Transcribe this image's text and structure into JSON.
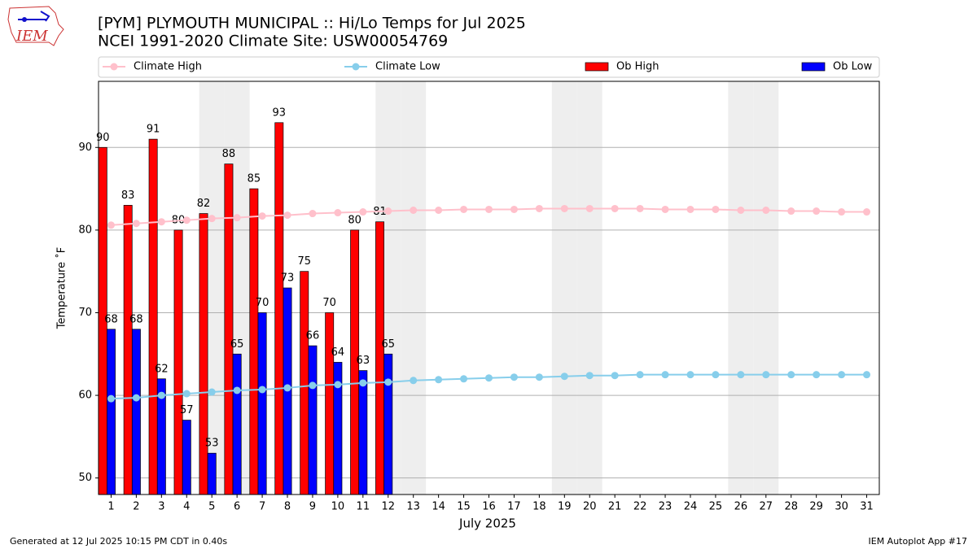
{
  "logo_text": "IEM",
  "footer": {
    "left": "Generated at 12 Jul 2025 10:15 PM CDT in 0.40s",
    "right": "IEM Autoplot App #17"
  },
  "chart_data": {
    "type": "bar",
    "title": [
      "[PYM] PLYMOUTH MUNICIPAL :: Hi/Lo Temps for Jul 2025",
      "NCEI 1991-2020 Climate Site: USW00054769"
    ],
    "x_label": "July 2025",
    "y_label": "Temperature ˚F",
    "x": [
      1,
      2,
      3,
      4,
      5,
      6,
      7,
      8,
      9,
      10,
      11,
      12,
      13,
      14,
      15,
      16,
      17,
      18,
      19,
      20,
      21,
      22,
      23,
      24,
      25,
      26,
      27,
      28,
      29,
      30,
      31
    ],
    "xlim": [
      0.5,
      31.5
    ],
    "xticks": [
      1,
      2,
      3,
      4,
      5,
      6,
      7,
      8,
      9,
      10,
      11,
      12,
      13,
      14,
      15,
      16,
      17,
      18,
      19,
      20,
      21,
      22,
      23,
      24,
      25,
      26,
      27,
      28,
      29,
      30,
      31
    ],
    "ylim": [
      48,
      98
    ],
    "yticks": [
      50,
      60,
      70,
      80,
      90
    ],
    "grid": true,
    "shaded_days": [
      5,
      6,
      12,
      13,
      19,
      20,
      26,
      27
    ],
    "series": [
      {
        "name": "Climate High",
        "type": "line",
        "color": "#ffc0cb",
        "values": [
          80.6,
          80.8,
          81.0,
          81.2,
          81.4,
          81.5,
          81.7,
          81.8,
          82.0,
          82.1,
          82.2,
          82.3,
          82.4,
          82.4,
          82.5,
          82.5,
          82.5,
          82.6,
          82.6,
          82.6,
          82.6,
          82.6,
          82.5,
          82.5,
          82.5,
          82.4,
          82.4,
          82.3,
          82.3,
          82.2,
          82.2
        ]
      },
      {
        "name": "Climate Low",
        "type": "line",
        "color": "#87ceeb",
        "values": [
          59.6,
          59.7,
          60.0,
          60.2,
          60.4,
          60.6,
          60.7,
          60.9,
          61.2,
          61.3,
          61.5,
          61.6,
          61.8,
          61.9,
          62.0,
          62.1,
          62.2,
          62.2,
          62.3,
          62.4,
          62.4,
          62.5,
          62.5,
          62.5,
          62.5,
          62.5,
          62.5,
          62.5,
          62.5,
          62.5,
          62.5
        ]
      },
      {
        "name": "Ob High",
        "type": "bar",
        "color": "#ff0000",
        "values": [
          90,
          83,
          91,
          80,
          82,
          88,
          85,
          93,
          75,
          70,
          80,
          81,
          null,
          null,
          null,
          null,
          null,
          null,
          null,
          null,
          null,
          null,
          null,
          null,
          null,
          null,
          null,
          null,
          null,
          null,
          null
        ]
      },
      {
        "name": "Ob Low",
        "type": "bar",
        "color": "#0000ff",
        "values": [
          68,
          68,
          62,
          57,
          53,
          65,
          70,
          73,
          66,
          64,
          63,
          65,
          null,
          null,
          null,
          null,
          null,
          null,
          null,
          null,
          null,
          null,
          null,
          null,
          null,
          null,
          null,
          null,
          null,
          null,
          null
        ]
      }
    ]
  }
}
